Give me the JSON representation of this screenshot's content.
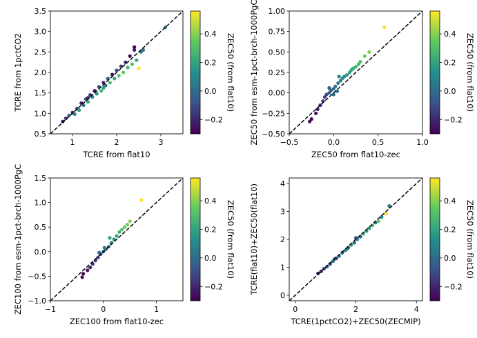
{
  "colors": {
    "colormap": [
      "#440154",
      "#3b528b",
      "#21918c",
      "#5ec962",
      "#fde725"
    ],
    "reference_line": "#000000"
  },
  "colorbar": {
    "label": "ZEC50 (from flat10)",
    "range": [
      -0.3,
      0.56
    ],
    "ticks": [
      -0.2,
      0.0,
      0.2,
      0.4
    ],
    "tick_labels": [
      "−0.2",
      "0.0",
      "0.2",
      "0.4"
    ]
  },
  "chart_data": [
    {
      "type": "scatter",
      "xlabel": "TCRE from flat10",
      "ylabel": "TCRE from 1pctCO2",
      "xlim": [
        0.5,
        3.5
      ],
      "ylim": [
        0.5,
        3.5
      ],
      "xticks": [
        1,
        2,
        3
      ],
      "xtick_labels": [
        "1",
        "2",
        "3"
      ],
      "yticks": [
        0.5,
        1.0,
        1.5,
        2.0,
        2.5,
        3.0,
        3.5
      ],
      "ytick_labels": [
        "0.5",
        "1.0",
        "1.5",
        "2.0",
        "2.5",
        "3.0",
        "3.5"
      ],
      "reference_line": "y = x",
      "colorbar_label": "ZEC50 (from flat10)",
      "points": [
        [
          0.78,
          0.8,
          -0.25
        ],
        [
          0.85,
          0.88,
          -0.15
        ],
        [
          0.92,
          0.95,
          0.0
        ],
        [
          1.0,
          1.02,
          -0.2
        ],
        [
          1.05,
          0.98,
          0.1
        ],
        [
          1.1,
          1.12,
          -0.1
        ],
        [
          1.15,
          1.08,
          0.15
        ],
        [
          1.2,
          1.25,
          -0.25
        ],
        [
          1.25,
          1.2,
          0.05
        ],
        [
          1.3,
          1.35,
          -0.05
        ],
        [
          1.35,
          1.28,
          0.2
        ],
        [
          1.4,
          1.45,
          -0.15
        ],
        [
          1.45,
          1.4,
          0.1
        ],
        [
          1.5,
          1.55,
          -0.28
        ],
        [
          1.55,
          1.48,
          0.15
        ],
        [
          1.6,
          1.65,
          -0.1
        ],
        [
          1.65,
          1.55,
          0.25
        ],
        [
          1.7,
          1.75,
          -0.2
        ],
        [
          1.75,
          1.68,
          0.05
        ],
        [
          1.8,
          1.85,
          -0.05
        ],
        [
          1.85,
          1.75,
          0.3
        ],
        [
          1.9,
          1.95,
          -0.25
        ],
        [
          1.95,
          1.85,
          0.2
        ],
        [
          2.0,
          2.05,
          -0.1
        ],
        [
          2.05,
          1.92,
          0.3
        ],
        [
          2.1,
          2.15,
          -0.15
        ],
        [
          2.15,
          2.0,
          0.35
        ],
        [
          2.2,
          2.25,
          -0.2
        ],
        [
          2.25,
          2.12,
          0.25
        ],
        [
          2.3,
          2.4,
          -0.28
        ],
        [
          2.35,
          2.2,
          0.3
        ],
        [
          2.4,
          2.55,
          -0.25
        ],
        [
          2.45,
          2.3,
          0.2
        ],
        [
          2.5,
          2.1,
          0.55
        ],
        [
          2.4,
          2.62,
          -0.3
        ],
        [
          2.55,
          2.5,
          0.05
        ],
        [
          2.6,
          2.55,
          0.0
        ],
        [
          3.1,
          3.1,
          0.05
        ],
        [
          1.35,
          1.38,
          -0.2
        ],
        [
          1.7,
          1.62,
          0.2
        ]
      ]
    },
    {
      "type": "scatter",
      "xlabel": "ZEC50 from flat10-zec",
      "ylabel": "ZEC50 from esm-1pct-brch-1000PgC",
      "xlim": [
        -0.5,
        1.0
      ],
      "ylim": [
        -0.5,
        1.0
      ],
      "xticks": [
        -0.5,
        0.0,
        0.5,
        1.0
      ],
      "xtick_labels": [
        "−0.5",
        "0.0",
        "0.5",
        "1.0"
      ],
      "yticks": [
        -0.5,
        -0.25,
        0.0,
        0.25,
        0.5,
        0.75,
        1.0
      ],
      "ytick_labels": [
        "−0.50",
        "−0.25",
        "0.00",
        "0.25",
        "0.50",
        "0.75",
        "1.00"
      ],
      "reference_line": "y = x",
      "colorbar_label": "ZEC50 (from flat10)",
      "points": [
        [
          -0.27,
          -0.35,
          -0.28
        ],
        [
          -0.25,
          -0.32,
          -0.3
        ],
        [
          -0.2,
          -0.25,
          -0.25
        ],
        [
          -0.18,
          -0.2,
          -0.22
        ],
        [
          -0.15,
          -0.15,
          -0.18
        ],
        [
          -0.12,
          -0.1,
          -0.15
        ],
        [
          -0.1,
          -0.05,
          -0.12
        ],
        [
          -0.08,
          -0.02,
          -0.1
        ],
        [
          -0.05,
          0.0,
          -0.05
        ],
        [
          -0.03,
          0.03,
          -0.03
        ],
        [
          0.0,
          0.05,
          0.0
        ],
        [
          0.02,
          0.08,
          0.02
        ],
        [
          0.05,
          0.12,
          0.05
        ],
        [
          0.08,
          0.15,
          0.08
        ],
        [
          0.1,
          0.18,
          0.1
        ],
        [
          0.12,
          0.2,
          0.12
        ],
        [
          0.15,
          0.22,
          0.15
        ],
        [
          0.18,
          0.25,
          0.18
        ],
        [
          0.2,
          0.28,
          0.2
        ],
        [
          0.22,
          0.3,
          0.22
        ],
        [
          0.25,
          0.32,
          0.25
        ],
        [
          0.28,
          0.35,
          0.28
        ],
        [
          0.3,
          0.38,
          0.3
        ],
        [
          0.35,
          0.45,
          0.35
        ],
        [
          0.4,
          0.5,
          0.4
        ],
        [
          0.57,
          0.8,
          0.55
        ],
        [
          -0.05,
          0.06,
          -0.05
        ],
        [
          0.0,
          -0.02,
          0.0
        ],
        [
          0.04,
          0.02,
          0.04
        ],
        [
          0.06,
          0.2,
          0.08
        ]
      ]
    },
    {
      "type": "scatter",
      "xlabel": "ZEC100 from flat10-zec",
      "ylabel": "ZEC100 from esm-1pct-brch-1000PgC",
      "xlim": [
        -1.0,
        1.5
      ],
      "ylim": [
        -1.0,
        1.5
      ],
      "xticks": [
        -1,
        0,
        1
      ],
      "xtick_labels": [
        "−1",
        "0",
        "1"
      ],
      "yticks": [
        -1.0,
        -0.5,
        0.0,
        0.5,
        1.0,
        1.5
      ],
      "ytick_labels": [
        "−1.0",
        "−0.5",
        "0.0",
        "0.5",
        "1.0",
        "1.5"
      ],
      "reference_line": "y = x",
      "colorbar_label": "ZEC50 (from flat10)",
      "points": [
        [
          -0.4,
          -0.52,
          -0.28
        ],
        [
          -0.38,
          -0.45,
          -0.3
        ],
        [
          -0.3,
          -0.38,
          -0.25
        ],
        [
          -0.25,
          -0.32,
          -0.22
        ],
        [
          -0.2,
          -0.25,
          -0.18
        ],
        [
          -0.15,
          -0.18,
          -0.15
        ],
        [
          -0.1,
          -0.12,
          -0.1
        ],
        [
          -0.05,
          -0.05,
          -0.05
        ],
        [
          0.0,
          0.0,
          0.0
        ],
        [
          0.05,
          0.05,
          0.03
        ],
        [
          0.1,
          0.1,
          0.08
        ],
        [
          0.15,
          0.18,
          0.1
        ],
        [
          0.2,
          0.25,
          0.15
        ],
        [
          0.25,
          0.32,
          0.2
        ],
        [
          0.3,
          0.4,
          0.25
        ],
        [
          0.35,
          0.45,
          0.3
        ],
        [
          0.4,
          0.5,
          0.35
        ],
        [
          0.45,
          0.55,
          0.38
        ],
        [
          0.5,
          0.62,
          0.4
        ],
        [
          0.72,
          1.05,
          0.55
        ],
        [
          -0.08,
          -0.02,
          -0.02
        ],
        [
          0.02,
          0.08,
          0.05
        ],
        [
          0.12,
          0.28,
          0.18
        ]
      ]
    },
    {
      "type": "scatter",
      "xlabel": "TCRE(1pctCO2)+ZEC50(ZECMIP)",
      "ylabel": "TCRE(flat10)+ZEC50(flat10)",
      "xlim": [
        -0.2,
        4.2
      ],
      "ylim": [
        -0.2,
        4.2
      ],
      "xticks": [
        0,
        2,
        4
      ],
      "xtick_labels": [
        "0",
        "2",
        "4"
      ],
      "yticks": [
        0,
        1,
        2,
        3,
        4
      ],
      "ytick_labels": [
        "0",
        "1",
        "2",
        "3",
        "4"
      ],
      "reference_line": "y = x",
      "colorbar_label": "ZEC50 (from flat10)",
      "points": [
        [
          0.75,
          0.78,
          -0.25
        ],
        [
          0.85,
          0.85,
          -0.2
        ],
        [
          0.95,
          0.95,
          -0.1
        ],
        [
          1.05,
          1.02,
          0.0
        ],
        [
          1.15,
          1.12,
          -0.15
        ],
        [
          1.25,
          1.22,
          0.05
        ],
        [
          1.35,
          1.32,
          -0.2
        ],
        [
          1.45,
          1.4,
          0.1
        ],
        [
          1.55,
          1.52,
          -0.05
        ],
        [
          1.65,
          1.6,
          0.15
        ],
        [
          1.75,
          1.7,
          -0.1
        ],
        [
          1.85,
          1.8,
          0.2
        ],
        [
          1.95,
          1.88,
          0.0
        ],
        [
          2.05,
          2.0,
          0.15
        ],
        [
          2.15,
          2.1,
          -0.05
        ],
        [
          2.25,
          2.2,
          0.25
        ],
        [
          2.35,
          2.3,
          0.1
        ],
        [
          2.45,
          2.4,
          0.2
        ],
        [
          2.55,
          2.5,
          0.3
        ],
        [
          2.65,
          2.6,
          0.05
        ],
        [
          2.75,
          2.65,
          0.35
        ],
        [
          2.85,
          2.8,
          0.1
        ],
        [
          3.0,
          2.92,
          0.55
        ],
        [
          3.1,
          3.2,
          0.05
        ],
        [
          1.3,
          1.3,
          0.0
        ],
        [
          1.7,
          1.65,
          0.05
        ],
        [
          2.0,
          2.05,
          -0.1
        ]
      ]
    }
  ]
}
